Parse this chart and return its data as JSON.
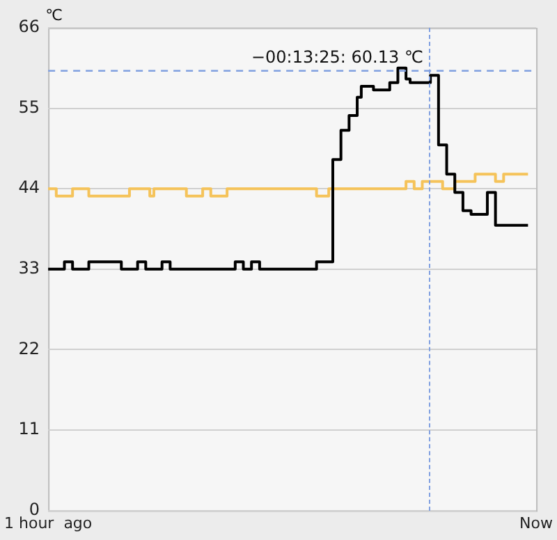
{
  "chart_data": {
    "type": "step",
    "ylabel": "℃",
    "categories": [
      "1 hour  ago",
      null,
      null,
      null,
      null,
      null,
      null,
      null,
      null,
      null,
      null,
      null,
      null,
      null,
      null,
      null,
      null,
      null,
      null,
      null,
      null,
      null,
      null,
      null,
      null,
      null,
      null,
      null,
      null,
      null,
      null,
      null,
      null,
      null,
      null,
      null,
      null,
      null,
      null,
      null,
      null,
      null,
      null,
      null,
      null,
      null,
      null,
      null,
      null,
      null,
      null,
      null,
      null,
      null,
      null,
      null,
      null,
      null,
      null,
      null,
      null,
      null,
      null,
      null,
      null,
      null,
      null,
      null,
      null,
      null,
      null,
      null,
      null,
      null,
      null,
      null,
      null,
      null,
      null,
      null,
      null,
      null,
      null,
      null,
      null,
      null,
      null,
      null,
      null,
      null,
      null,
      null,
      null,
      null,
      null,
      null,
      null,
      null,
      null,
      null,
      null,
      null,
      null,
      null,
      null,
      null,
      null,
      null,
      null,
      null,
      null,
      null,
      null,
      null,
      null,
      null,
      null,
      null,
      null,
      null,
      "Now"
    ],
    "ylim": [
      0,
      66
    ],
    "yticks": [
      0,
      11,
      22,
      33,
      44,
      55,
      66
    ],
    "grid": "y",
    "legend": false,
    "marker": "none",
    "line_style": "solid",
    "series": [
      {
        "color": "#000000",
        "values": [
          33,
          33,
          33,
          33,
          34,
          34,
          33,
          33,
          33,
          33,
          34,
          34,
          34,
          34,
          34,
          34,
          34,
          34,
          33,
          33,
          33,
          33,
          34,
          34,
          33,
          33,
          33,
          33,
          34,
          34,
          33,
          33,
          33,
          33,
          33,
          33,
          33,
          33,
          33,
          33,
          33,
          33,
          33,
          33,
          33,
          33,
          34,
          34,
          33,
          33,
          34,
          34,
          33,
          33,
          33,
          33,
          33,
          33,
          33,
          33,
          33,
          33,
          33,
          33,
          33,
          33,
          34,
          34,
          34,
          34,
          48,
          48,
          52,
          52,
          54,
          54,
          56.5,
          58,
          58,
          58,
          57.5,
          57.5,
          57.5,
          57.5,
          58.5,
          58.5,
          60.5,
          60.5,
          59,
          58.5,
          58.5,
          58.5,
          58.5,
          58.5,
          59.5,
          59.5,
          50,
          50,
          46,
          46,
          43.5,
          43.5,
          41,
          41,
          40.5,
          40.5,
          40.5,
          40.5,
          43.5,
          43.5,
          39,
          39,
          39,
          39,
          39,
          39,
          39,
          39,
          39,
          null,
          null
        ]
      },
      {
        "color": "#f5c35a",
        "values": [
          44,
          44,
          43,
          43,
          43,
          43,
          44,
          44,
          44,
          44,
          43,
          43,
          43,
          43,
          43,
          43,
          43,
          43,
          43,
          43,
          44,
          44,
          44,
          44,
          44,
          43,
          44,
          44,
          44,
          44,
          44,
          44,
          44,
          44,
          43,
          43,
          43,
          43,
          44,
          44,
          43,
          43,
          43,
          43,
          44,
          44,
          44,
          44,
          44,
          44,
          44,
          44,
          44,
          44,
          44,
          44,
          44,
          44,
          44,
          44,
          44,
          44,
          44,
          44,
          44,
          44,
          43,
          43,
          43,
          44,
          44,
          44,
          44,
          44,
          44,
          44,
          44,
          44,
          44,
          44,
          44,
          44,
          44,
          44,
          44,
          44,
          44,
          44,
          45,
          45,
          44,
          44,
          45,
          45,
          45,
          45,
          45,
          44,
          44,
          44,
          45,
          45,
          45,
          45,
          45,
          46,
          46,
          46,
          46,
          46,
          45,
          45,
          46,
          46,
          46,
          46,
          46,
          46,
          46,
          null,
          null
        ]
      }
    ],
    "ref_lines": [
      {
        "axis": "y",
        "value": 60.13,
        "color": "#7f9fe0",
        "line_style": "dashed"
      }
    ],
    "annotations": [
      {
        "text": "−00:13:25: 60.13 ℃",
        "y": 60.13
      }
    ]
  }
}
